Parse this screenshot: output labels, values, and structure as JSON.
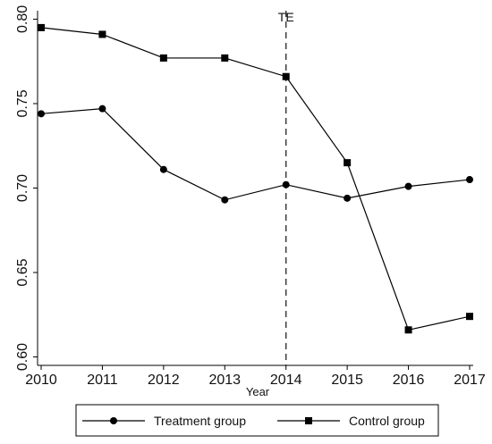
{
  "chart_data": {
    "type": "line",
    "title": "",
    "xlabel": "Year",
    "ylabel": "",
    "x": [
      2010,
      2011,
      2012,
      2013,
      2014,
      2015,
      2016,
      2017
    ],
    "x_ticks": [
      "2010",
      "2011",
      "2012",
      "2013",
      "2014",
      "2015",
      "2016",
      "2017"
    ],
    "xlim": [
      2010,
      2017
    ],
    "ylim": [
      0.6,
      0.8
    ],
    "y_ticks": [
      "0.60",
      "0.65",
      "0.70",
      "0.75",
      "0.80"
    ],
    "grid": false,
    "legend_position": "bottom",
    "series": [
      {
        "name": "Treatment group",
        "marker": "circle",
        "color": "#000000",
        "values": [
          0.744,
          0.747,
          0.711,
          0.693,
          0.702,
          0.694,
          0.701,
          0.705
        ]
      },
      {
        "name": "Control group",
        "marker": "square",
        "color": "#000000",
        "values": [
          0.795,
          0.791,
          0.777,
          0.777,
          0.766,
          0.715,
          0.616,
          0.624
        ]
      }
    ],
    "annotations": [
      {
        "text": "TE",
        "x": 2014,
        "style": "dashed-vertical-line"
      }
    ]
  }
}
